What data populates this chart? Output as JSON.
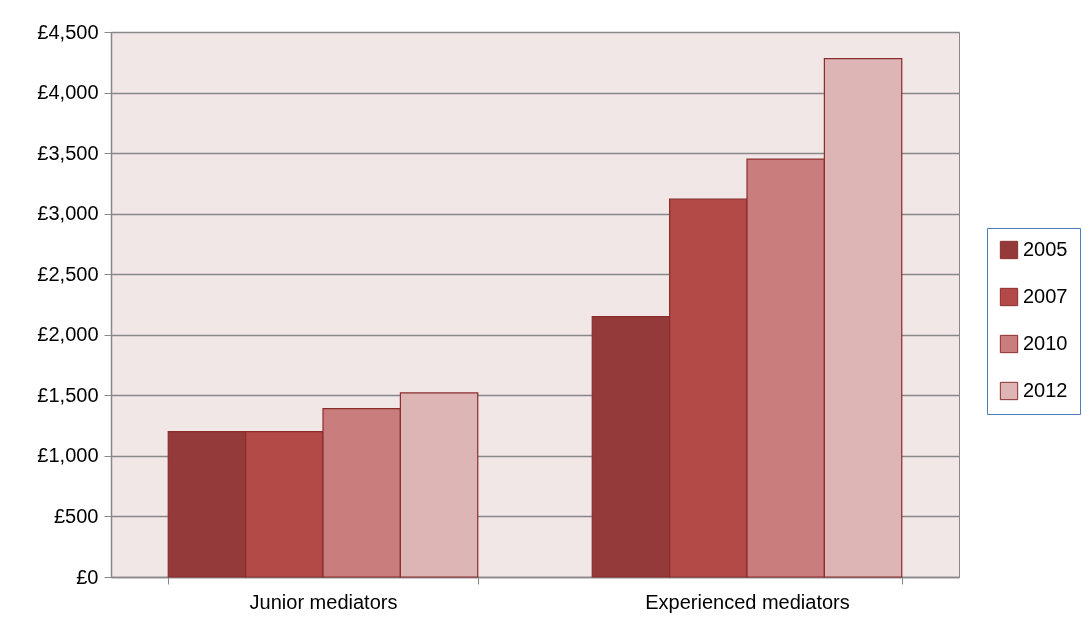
{
  "chart_data": {
    "type": "bar",
    "categories": [
      "Junior mediators",
      "Experienced mediators"
    ],
    "series": [
      {
        "name": "2005",
        "color": "#943a3a",
        "values": [
          1200,
          2150
        ]
      },
      {
        "name": "2007",
        "color": "#b34a48",
        "values": [
          1200,
          3120
        ]
      },
      {
        "name": "2010",
        "color": "#c97d7c",
        "values": [
          1390,
          3450
        ]
      },
      {
        "name": "2012",
        "color": "#ddb5b5",
        "values": [
          1520,
          4280
        ]
      }
    ],
    "ylim": [
      0,
      4500
    ],
    "yticks": [
      {
        "value": 0,
        "label": "£0"
      },
      {
        "value": 500,
        "label": "£500"
      },
      {
        "value": 1000,
        "label": "£1,000"
      },
      {
        "value": 1500,
        "label": "£1,500"
      },
      {
        "value": 2000,
        "label": "£2,000"
      },
      {
        "value": 2500,
        "label": "£2,500"
      },
      {
        "value": 3000,
        "label": "£3,000"
      },
      {
        "value": 3500,
        "label": "£3,500"
      },
      {
        "value": 4000,
        "label": "£4,000"
      },
      {
        "value": 4500,
        "label": "£4,500"
      }
    ],
    "grid": "y",
    "legend": "right"
  }
}
